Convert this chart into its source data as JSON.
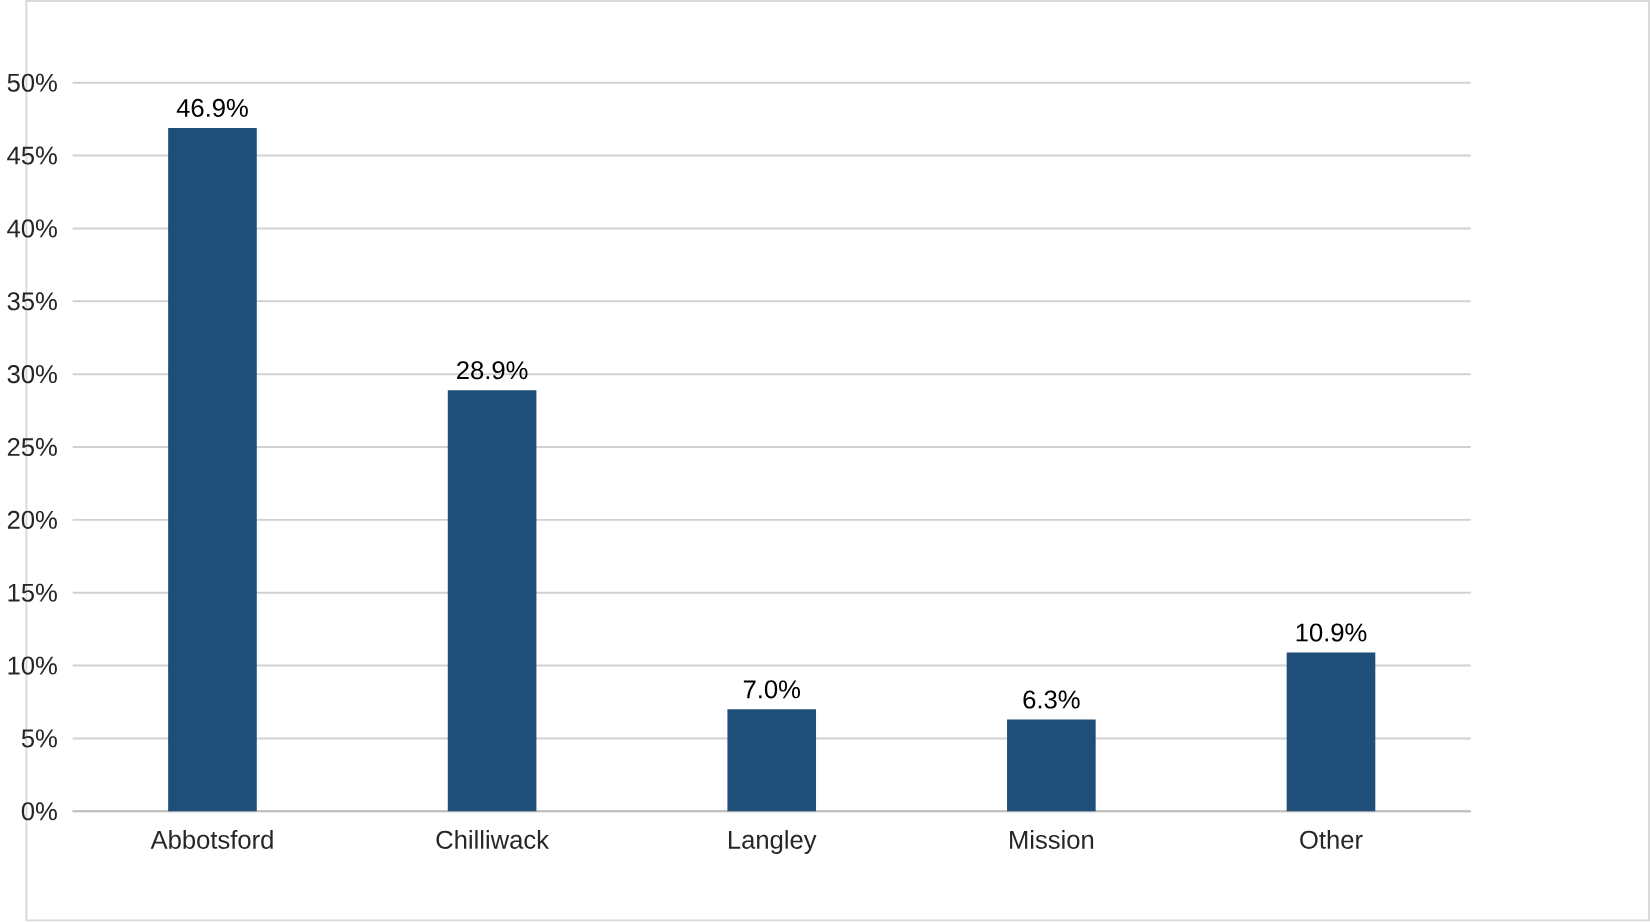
{
  "chart_data": {
    "type": "bar",
    "categories": [
      "Abbotsford",
      "Chilliwack",
      "Langley",
      "Mission",
      "Other"
    ],
    "values": [
      46.9,
      28.9,
      7.0,
      6.3,
      10.9
    ],
    "value_labels": [
      "46.9%",
      "28.9%",
      "7.0%",
      "6.3%",
      "10.9%"
    ],
    "color": "#1f4e79",
    "ylim": [
      0,
      50
    ],
    "yticks": [
      {
        "value": 0,
        "label": "0%"
      },
      {
        "value": 5,
        "label": "5%"
      },
      {
        "value": 10,
        "label": "10%"
      },
      {
        "value": 15,
        "label": "15%"
      },
      {
        "value": 20,
        "label": "20%"
      },
      {
        "value": 25,
        "label": "25%"
      },
      {
        "value": 30,
        "label": "30%"
      },
      {
        "value": 35,
        "label": "35%"
      },
      {
        "value": 40,
        "label": "40%"
      },
      {
        "value": 45,
        "label": "45%"
      },
      {
        "value": 50,
        "label": "50%"
      }
    ],
    "grid": "y"
  }
}
